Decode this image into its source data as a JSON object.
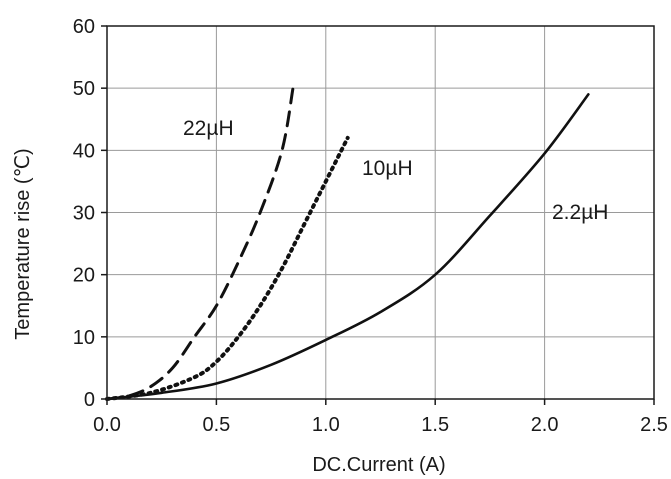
{
  "chart_data": {
    "type": "line",
    "xlabel": "DC.Current (A)",
    "ylabel": "Temperature rise (℃)",
    "xlim": [
      0.0,
      2.5
    ],
    "ylim": [
      0,
      60
    ],
    "x_ticks": [
      "0.0",
      "0.5",
      "1.0",
      "1.5",
      "2.0",
      "2.5"
    ],
    "y_ticks": [
      "0",
      "10",
      "20",
      "30",
      "40",
      "50",
      "60"
    ],
    "grid": true,
    "series": [
      {
        "name": "22µH",
        "line_style": "dashed",
        "color": "#111111",
        "points": [
          [
            0.0,
            0
          ],
          [
            0.1,
            0.5
          ],
          [
            0.2,
            2
          ],
          [
            0.3,
            5
          ],
          [
            0.4,
            10
          ],
          [
            0.5,
            15
          ],
          [
            0.6,
            22
          ],
          [
            0.7,
            30
          ],
          [
            0.8,
            40
          ],
          [
            0.85,
            50
          ]
        ]
      },
      {
        "name": "10µH",
        "line_style": "dotted",
        "color": "#111111",
        "points": [
          [
            0.0,
            0
          ],
          [
            0.2,
            1
          ],
          [
            0.4,
            3.5
          ],
          [
            0.5,
            6
          ],
          [
            0.6,
            10
          ],
          [
            0.7,
            15
          ],
          [
            0.8,
            21
          ],
          [
            0.9,
            28
          ],
          [
            1.0,
            35
          ],
          [
            1.1,
            42
          ]
        ]
      },
      {
        "name": "2.2µH",
        "line_style": "solid",
        "color": "#111111",
        "points": [
          [
            0.0,
            0
          ],
          [
            0.25,
            1
          ],
          [
            0.5,
            2.5
          ],
          [
            0.75,
            5.5
          ],
          [
            1.0,
            9.5
          ],
          [
            1.25,
            14
          ],
          [
            1.5,
            20
          ],
          [
            1.75,
            29.5
          ],
          [
            2.0,
            39.5
          ],
          [
            2.2,
            49
          ]
        ]
      }
    ]
  }
}
